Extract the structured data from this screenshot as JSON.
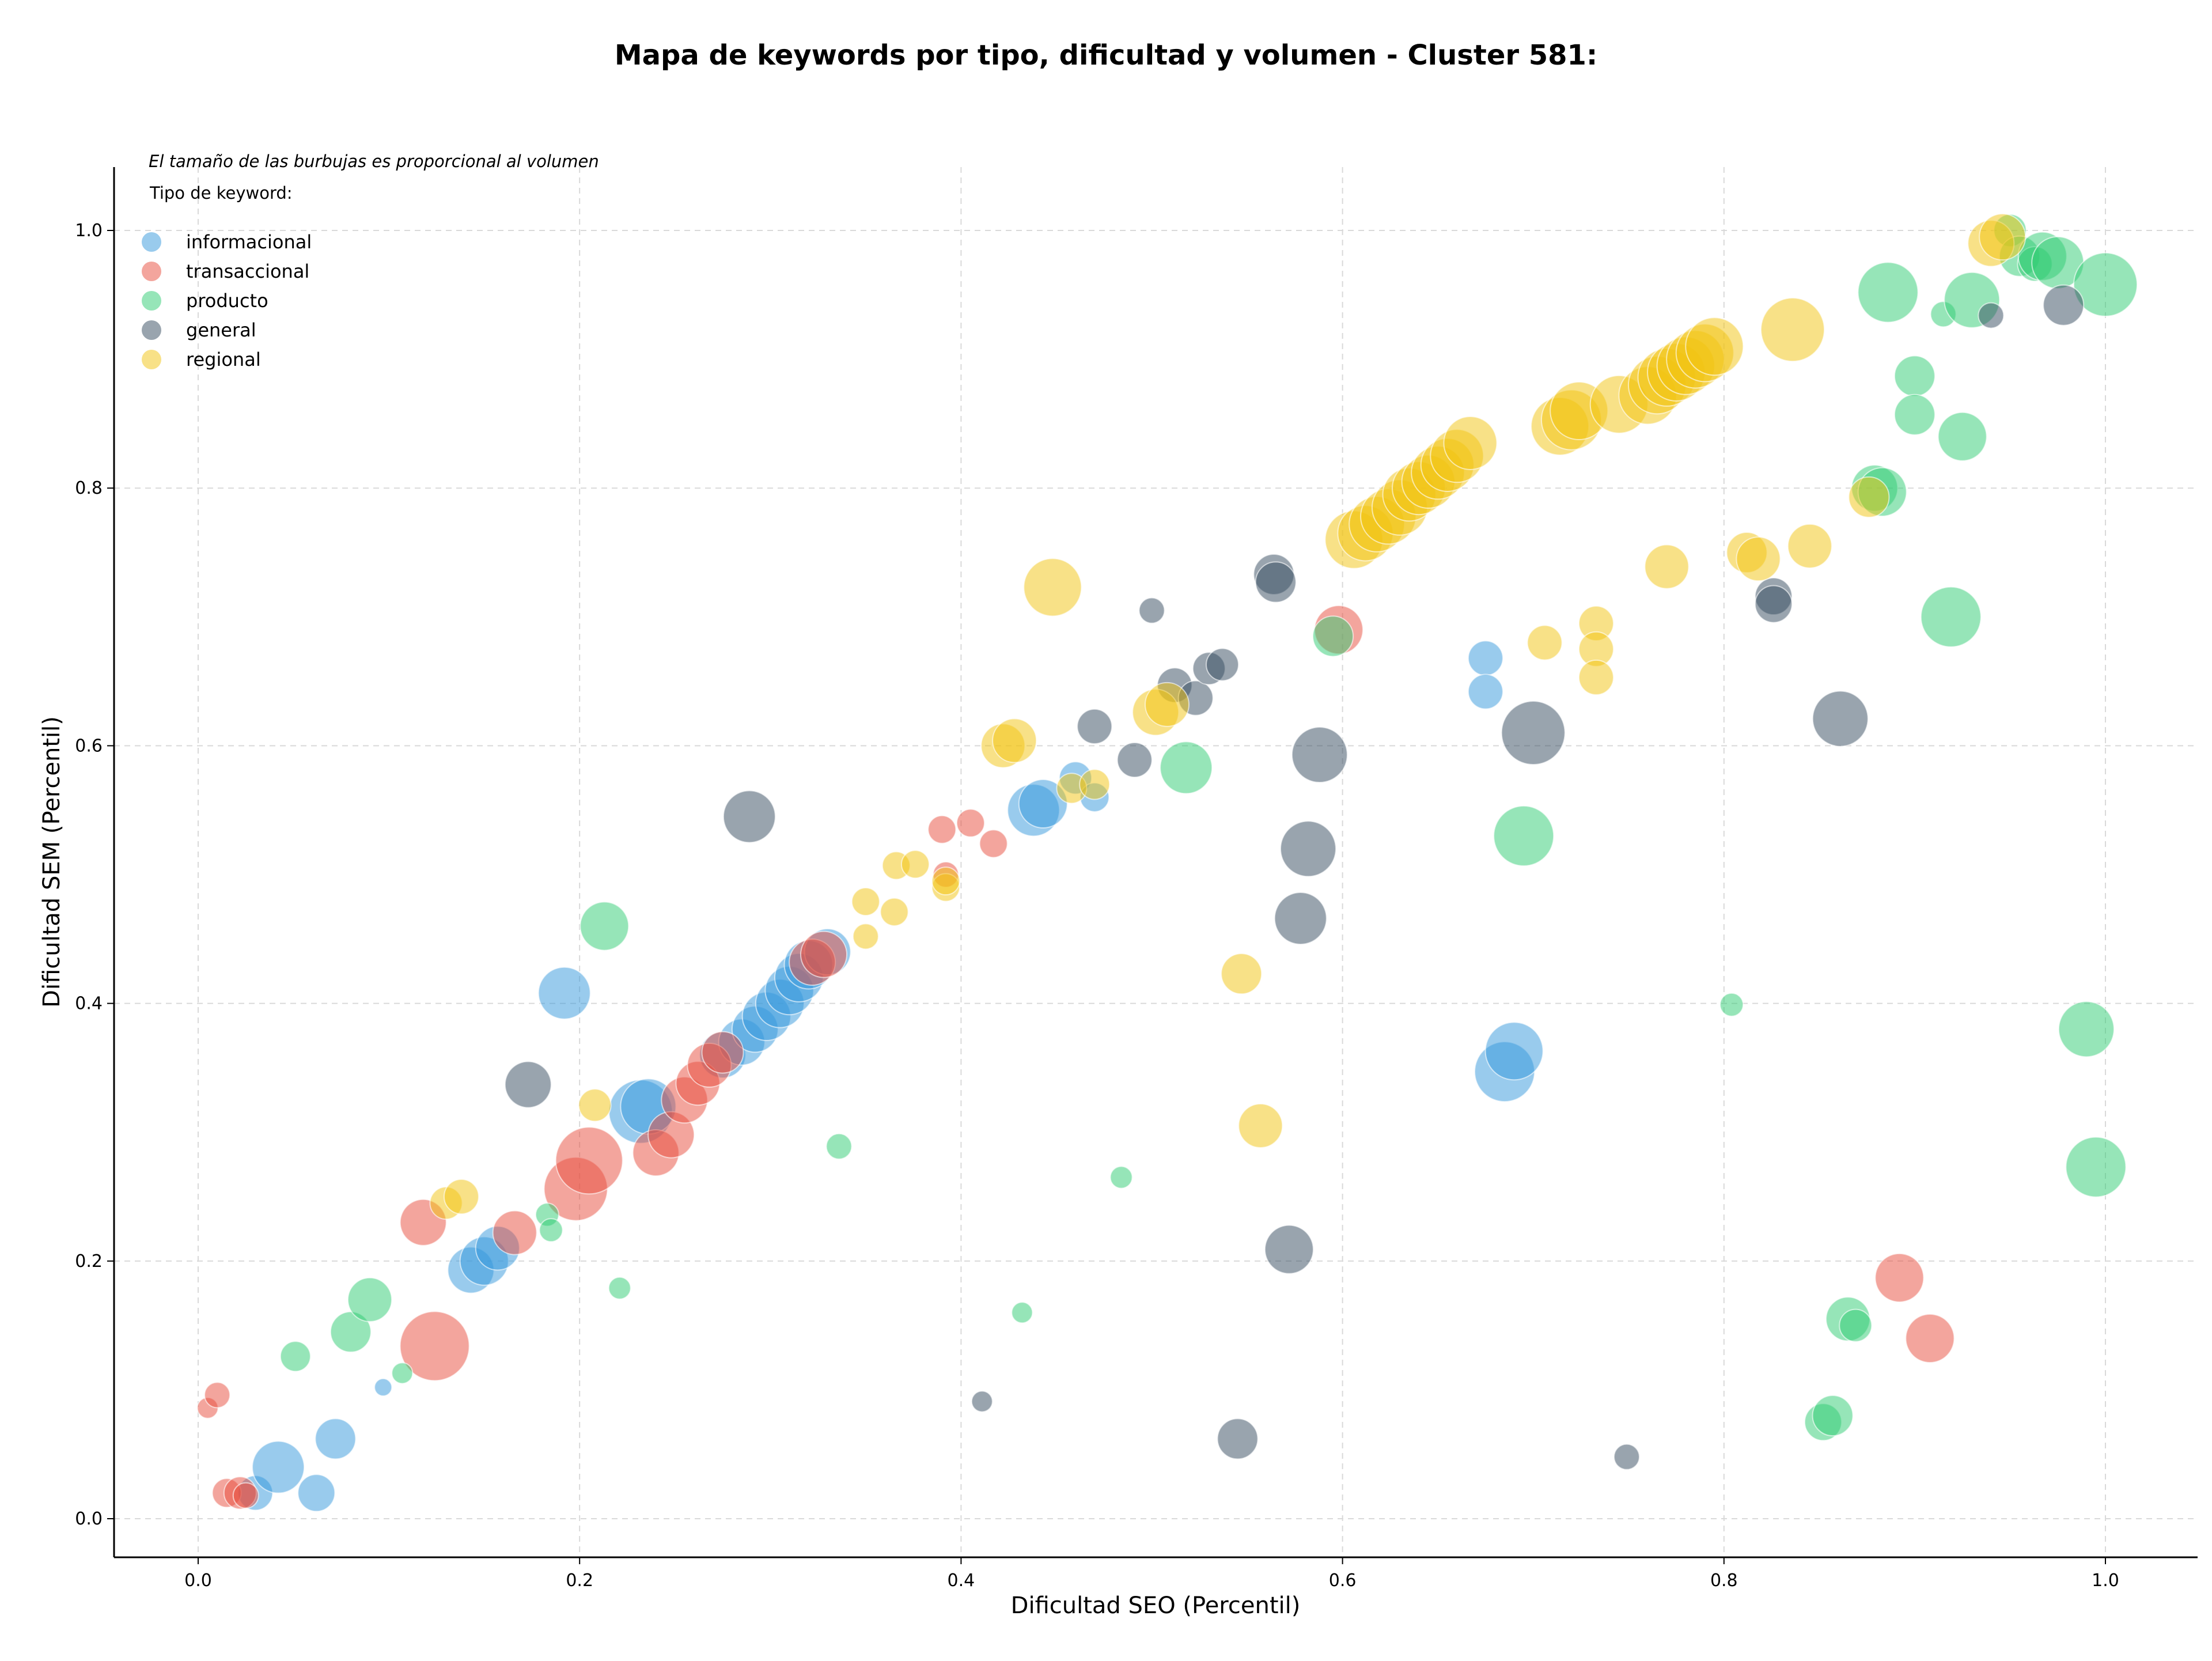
{
  "chart_data": {
    "type": "scatter",
    "title": "Mapa de keywords por tipo, dificultad y volumen - Cluster 581:",
    "xlabel": "Dificultad SEO (Percentil)",
    "ylabel": "Dificultad SEM (Percentil)",
    "xlim": [
      -0.045,
      1.045
    ],
    "ylim": [
      -0.03,
      1.05
    ],
    "xticks": [
      0.0,
      0.2,
      0.4,
      0.6,
      0.8,
      1.0
    ],
    "yticks": [
      0.0,
      0.2,
      0.4,
      0.6,
      0.8,
      1.0
    ],
    "xtick_labels": [
      "0.0",
      "0.2",
      "0.4",
      "0.6",
      "0.8",
      "1.0"
    ],
    "ytick_labels": [
      "0.0",
      "0.2",
      "0.4",
      "0.6",
      "0.8",
      "1.0"
    ],
    "grid": true,
    "legend_position": "top-left",
    "note": "El tamaño de las burbujas es proporcional al volumen",
    "legend_title": "Tipo de keyword:",
    "series": [
      {
        "name": "informacional",
        "color": "#3498db",
        "points": [
          [
            0.097,
            0.102,
            15
          ],
          [
            0.03,
            0.02,
            30
          ],
          [
            0.042,
            0.04,
            45
          ],
          [
            0.062,
            0.02,
            32
          ],
          [
            0.072,
            0.062,
            35
          ],
          [
            0.143,
            0.193,
            40
          ],
          [
            0.15,
            0.2,
            42
          ],
          [
            0.157,
            0.21,
            38
          ],
          [
            0.192,
            0.408,
            45
          ],
          [
            0.232,
            0.316,
            55
          ],
          [
            0.236,
            0.32,
            48
          ],
          [
            0.275,
            0.36,
            40
          ],
          [
            0.285,
            0.37,
            40
          ],
          [
            0.292,
            0.38,
            40
          ],
          [
            0.298,
            0.39,
            42
          ],
          [
            0.305,
            0.4,
            42
          ],
          [
            0.31,
            0.41,
            42
          ],
          [
            0.315,
            0.42,
            42
          ],
          [
            0.32,
            0.43,
            42
          ],
          [
            0.33,
            0.44,
            40
          ],
          [
            0.438,
            0.55,
            45
          ],
          [
            0.443,
            0.555,
            42
          ],
          [
            0.46,
            0.575,
            28
          ],
          [
            0.47,
            0.56,
            25
          ],
          [
            0.675,
            0.668,
            30
          ],
          [
            0.675,
            0.642,
            30
          ],
          [
            0.685,
            0.347,
            52
          ],
          [
            0.69,
            0.363,
            50
          ]
        ]
      },
      {
        "name": "transaccional",
        "color": "#e74c3c",
        "points": [
          [
            0.005,
            0.086,
            18
          ],
          [
            0.01,
            0.096,
            22
          ],
          [
            0.015,
            0.02,
            25
          ],
          [
            0.022,
            0.02,
            28
          ],
          [
            0.025,
            0.018,
            22
          ],
          [
            0.118,
            0.23,
            40
          ],
          [
            0.124,
            0.134,
            60
          ],
          [
            0.166,
            0.222,
            38
          ],
          [
            0.198,
            0.256,
            55
          ],
          [
            0.205,
            0.278,
            58
          ],
          [
            0.24,
            0.284,
            40
          ],
          [
            0.248,
            0.298,
            40
          ],
          [
            0.255,
            0.325,
            40
          ],
          [
            0.262,
            0.338,
            38
          ],
          [
            0.268,
            0.352,
            38
          ],
          [
            0.275,
            0.362,
            36
          ],
          [
            0.322,
            0.432,
            40
          ],
          [
            0.328,
            0.438,
            40
          ],
          [
            0.39,
            0.535,
            24
          ],
          [
            0.392,
            0.5,
            22
          ],
          [
            0.405,
            0.54,
            24
          ],
          [
            0.417,
            0.524,
            24
          ],
          [
            0.598,
            0.69,
            42
          ],
          [
            0.892,
            0.187,
            42
          ],
          [
            0.908,
            0.14,
            42
          ]
        ]
      },
      {
        "name": "producto",
        "color": "#2ecc71",
        "points": [
          [
            0.051,
            0.126,
            26
          ],
          [
            0.08,
            0.145,
            35
          ],
          [
            0.09,
            0.17,
            38
          ],
          [
            0.107,
            0.113,
            18
          ],
          [
            0.183,
            0.236,
            20
          ],
          [
            0.185,
            0.224,
            20
          ],
          [
            0.213,
            0.46,
            42
          ],
          [
            0.221,
            0.179,
            19
          ],
          [
            0.336,
            0.289,
            22
          ],
          [
            0.432,
            0.16,
            18
          ],
          [
            0.484,
            0.265,
            19
          ],
          [
            0.518,
            0.583,
            45
          ],
          [
            0.595,
            0.685,
            35
          ],
          [
            0.695,
            0.53,
            52
          ],
          [
            0.804,
            0.399,
            20
          ],
          [
            0.852,
            0.075,
            32
          ],
          [
            0.857,
            0.08,
            35
          ],
          [
            0.865,
            0.155,
            38
          ],
          [
            0.869,
            0.15,
            28
          ],
          [
            0.879,
            0.8,
            40
          ],
          [
            0.883,
            0.797,
            42
          ],
          [
            0.886,
            0.952,
            52
          ],
          [
            0.9,
            0.887,
            35
          ],
          [
            0.9,
            0.857,
            35
          ],
          [
            0.915,
            0.935,
            22
          ],
          [
            0.919,
            0.7,
            52
          ],
          [
            0.925,
            0.84,
            42
          ],
          [
            0.93,
            0.946,
            48
          ],
          [
            0.95,
            1.0,
            28
          ],
          [
            0.955,
            0.98,
            35
          ],
          [
            0.963,
            0.974,
            30
          ],
          [
            0.967,
            0.98,
            42
          ],
          [
            0.975,
            0.975,
            45
          ],
          [
            0.99,
            0.38,
            48
          ],
          [
            0.995,
            0.273,
            52
          ],
          [
            1.0,
            0.958,
            55
          ]
        ]
      },
      {
        "name": "general",
        "color": "#34495e",
        "points": [
          [
            0.173,
            0.337,
            40
          ],
          [
            0.289,
            0.545,
            45
          ],
          [
            0.411,
            0.091,
            18
          ],
          [
            0.491,
            0.589,
            30
          ],
          [
            0.5,
            0.705,
            22
          ],
          [
            0.47,
            0.615,
            30
          ],
          [
            0.512,
            0.647,
            30
          ],
          [
            0.523,
            0.637,
            30
          ],
          [
            0.53,
            0.66,
            28
          ],
          [
            0.537,
            0.663,
            28
          ],
          [
            0.545,
            0.062,
            35
          ],
          [
            0.564,
            0.733,
            35
          ],
          [
            0.565,
            0.727,
            35
          ],
          [
            0.572,
            0.209,
            42
          ],
          [
            0.578,
            0.466,
            45
          ],
          [
            0.582,
            0.52,
            48
          ],
          [
            0.588,
            0.593,
            48
          ],
          [
            0.7,
            0.61,
            55
          ],
          [
            0.749,
            0.048,
            22
          ],
          [
            0.826,
            0.716,
            32
          ],
          [
            0.826,
            0.71,
            32
          ],
          [
            0.861,
            0.621,
            48
          ],
          [
            0.94,
            0.934,
            22
          ],
          [
            0.978,
            0.942,
            35
          ]
        ]
      },
      {
        "name": "regional",
        "color": "#f1c40f",
        "points": [
          [
            0.13,
            0.245,
            28
          ],
          [
            0.138,
            0.25,
            30
          ],
          [
            0.208,
            0.321,
            28
          ],
          [
            0.35,
            0.479,
            24
          ],
          [
            0.35,
            0.452,
            22
          ],
          [
            0.365,
            0.471,
            24
          ],
          [
            0.366,
            0.507,
            24
          ],
          [
            0.376,
            0.508,
            24
          ],
          [
            0.392,
            0.49,
            24
          ],
          [
            0.392,
            0.495,
            24
          ],
          [
            0.422,
            0.6,
            38
          ],
          [
            0.428,
            0.604,
            38
          ],
          [
            0.448,
            0.723,
            50
          ],
          [
            0.458,
            0.567,
            26
          ],
          [
            0.47,
            0.57,
            26
          ],
          [
            0.502,
            0.626,
            40
          ],
          [
            0.508,
            0.632,
            38
          ],
          [
            0.547,
            0.423,
            35
          ],
          [
            0.557,
            0.305,
            38
          ],
          [
            0.606,
            0.76,
            50
          ],
          [
            0.612,
            0.765,
            48
          ],
          [
            0.618,
            0.772,
            48
          ],
          [
            0.624,
            0.778,
            48
          ],
          [
            0.63,
            0.785,
            48
          ],
          [
            0.635,
            0.795,
            46
          ],
          [
            0.64,
            0.8,
            46
          ],
          [
            0.645,
            0.805,
            46
          ],
          [
            0.65,
            0.812,
            46
          ],
          [
            0.655,
            0.818,
            46
          ],
          [
            0.66,
            0.825,
            46
          ],
          [
            0.667,
            0.835,
            46
          ],
          [
            0.706,
            0.68,
            30
          ],
          [
            0.714,
            0.848,
            50
          ],
          [
            0.72,
            0.853,
            52
          ],
          [
            0.724,
            0.86,
            50
          ],
          [
            0.733,
            0.695,
            30
          ],
          [
            0.733,
            0.675,
            30
          ],
          [
            0.733,
            0.653,
            30
          ],
          [
            0.745,
            0.865,
            50
          ],
          [
            0.76,
            0.872,
            50
          ],
          [
            0.765,
            0.88,
            50
          ],
          [
            0.77,
            0.886,
            50
          ],
          [
            0.775,
            0.89,
            50
          ],
          [
            0.78,
            0.895,
            50
          ],
          [
            0.785,
            0.9,
            50
          ],
          [
            0.79,
            0.905,
            50
          ],
          [
            0.795,
            0.91,
            50
          ],
          [
            0.77,
            0.739,
            38
          ],
          [
            0.812,
            0.75,
            35
          ],
          [
            0.818,
            0.745,
            38
          ],
          [
            0.845,
            0.755,
            38
          ],
          [
            0.836,
            0.923,
            55
          ],
          [
            0.876,
            0.793,
            35
          ],
          [
            0.94,
            0.99,
            40
          ],
          [
            0.946,
            0.995,
            40
          ]
        ]
      }
    ]
  }
}
